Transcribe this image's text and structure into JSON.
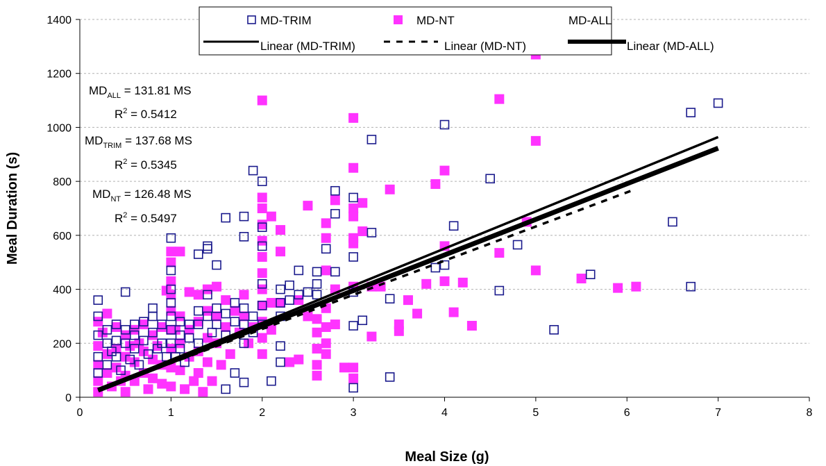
{
  "chart_data": {
    "type": "scatter",
    "title": "",
    "xlabel": "Meal Size (g)",
    "ylabel": "Meal Duration (s)",
    "xlim": [
      0,
      8
    ],
    "ylim": [
      0,
      1400
    ],
    "x_ticks": [
      0,
      1,
      2,
      3,
      4,
      5,
      6,
      7,
      8
    ],
    "y_ticks": [
      0,
      200,
      400,
      600,
      800,
      1000,
      1200,
      1400
    ],
    "grid": "horizontal dashed",
    "legend_placement": "top",
    "legend": {
      "md_trim": "MD-TRIM",
      "md_nt": "MD-NT",
      "md_all": "MD-ALL",
      "lin_trim": "Linear (MD-TRIM)",
      "lin_nt": "Linear (MD-NT)",
      "lin_all": "Linear (MD-ALL)"
    },
    "annotations": {
      "all_eq_pre": "MD",
      "all_eq_sub": "ALL",
      "all_eq_post": " = 131.81 MS",
      "all_r2_pre": "R",
      "all_r2_sup": "2",
      "all_r2_post": " = 0.5412",
      "trim_eq_pre": "MD",
      "trim_eq_sub": "TRIM",
      "trim_eq_post": " = 137.68 MS",
      "trim_r2_pre": "R",
      "trim_r2_sup": "2",
      "trim_r2_post": " = 0.5345",
      "nt_eq_pre": "MD",
      "nt_eq_sub": "NT",
      "nt_eq_post": " = 126.48 MS",
      "nt_r2_pre": "R",
      "nt_r2_sup": "2",
      "nt_r2_post": " = 0.5497"
    },
    "colors": {
      "trim": "#1a1a8c",
      "nt": "#ff33ff",
      "line": "#000000",
      "grid": "#b0b0b0"
    },
    "series": [
      {
        "name": "MD-TRIM",
        "marker": "open-square",
        "points": [
          [
            0.2,
            360
          ],
          [
            0.2,
            300
          ],
          [
            0.2,
            230
          ],
          [
            0.2,
            150
          ],
          [
            0.2,
            90
          ],
          [
            0.3,
            250
          ],
          [
            0.3,
            200
          ],
          [
            0.3,
            120
          ],
          [
            0.35,
            170
          ],
          [
            0.4,
            270
          ],
          [
            0.4,
            210
          ],
          [
            0.4,
            150
          ],
          [
            0.45,
            100
          ],
          [
            0.5,
            390
          ],
          [
            0.5,
            250
          ],
          [
            0.5,
            200
          ],
          [
            0.55,
            140
          ],
          [
            0.6,
            270
          ],
          [
            0.6,
            230
          ],
          [
            0.6,
            180
          ],
          [
            0.65,
            120
          ],
          [
            0.7,
            280
          ],
          [
            0.7,
            210
          ],
          [
            0.75,
            160
          ],
          [
            0.8,
            330
          ],
          [
            0.8,
            300
          ],
          [
            0.8,
            240
          ],
          [
            0.85,
            180
          ],
          [
            0.9,
            270
          ],
          [
            0.9,
            200
          ],
          [
            0.95,
            150
          ],
          [
            1.0,
            590
          ],
          [
            1.0,
            470
          ],
          [
            1.0,
            400
          ],
          [
            1.0,
            350
          ],
          [
            1.0,
            300
          ],
          [
            1.0,
            250
          ],
          [
            1.0,
            200
          ],
          [
            1.05,
            150
          ],
          [
            1.1,
            280
          ],
          [
            1.1,
            230
          ],
          [
            1.1,
            180
          ],
          [
            1.15,
            130
          ],
          [
            1.2,
            270
          ],
          [
            1.2,
            220
          ],
          [
            1.3,
            530
          ],
          [
            1.3,
            320
          ],
          [
            1.3,
            270
          ],
          [
            1.3,
            200
          ],
          [
            1.4,
            560
          ],
          [
            1.4,
            550
          ],
          [
            1.4,
            380
          ],
          [
            1.4,
            300
          ],
          [
            1.45,
            240
          ],
          [
            1.5,
            490
          ],
          [
            1.5,
            330
          ],
          [
            1.5,
            270
          ],
          [
            1.6,
            665
          ],
          [
            1.6,
            310
          ],
          [
            1.6,
            230
          ],
          [
            1.6,
            30
          ],
          [
            1.7,
            350
          ],
          [
            1.7,
            280
          ],
          [
            1.7,
            90
          ],
          [
            1.8,
            670
          ],
          [
            1.8,
            595
          ],
          [
            1.8,
            330
          ],
          [
            1.8,
            270
          ],
          [
            1.8,
            200
          ],
          [
            1.8,
            55
          ],
          [
            1.9,
            840
          ],
          [
            1.9,
            300
          ],
          [
            1.9,
            240
          ],
          [
            2.0,
            800
          ],
          [
            2.0,
            630
          ],
          [
            2.0,
            560
          ],
          [
            2.0,
            420
          ],
          [
            2.0,
            340
          ],
          [
            2.0,
            270
          ],
          [
            2.1,
            60
          ],
          [
            2.2,
            400
          ],
          [
            2.2,
            350
          ],
          [
            2.2,
            300
          ],
          [
            2.2,
            190
          ],
          [
            2.2,
            130
          ],
          [
            2.3,
            415
          ],
          [
            2.3,
            360
          ],
          [
            2.4,
            470
          ],
          [
            2.4,
            380
          ],
          [
            2.5,
            390
          ],
          [
            2.6,
            465
          ],
          [
            2.6,
            420
          ],
          [
            2.6,
            380
          ],
          [
            2.7,
            550
          ],
          [
            2.8,
            765
          ],
          [
            2.8,
            680
          ],
          [
            2.8,
            465
          ],
          [
            3.0,
            740
          ],
          [
            3.0,
            520
          ],
          [
            3.0,
            390
          ],
          [
            3.0,
            265
          ],
          [
            3.0,
            35
          ],
          [
            3.1,
            285
          ],
          [
            3.2,
            955
          ],
          [
            3.2,
            610
          ],
          [
            3.4,
            365
          ],
          [
            3.4,
            75
          ],
          [
            3.9,
            480
          ],
          [
            4.0,
            1010
          ],
          [
            4.0,
            490
          ],
          [
            4.1,
            635
          ],
          [
            4.5,
            810
          ],
          [
            4.6,
            395
          ],
          [
            4.8,
            565
          ],
          [
            5.2,
            250
          ],
          [
            5.6,
            455
          ],
          [
            6.5,
            650
          ],
          [
            6.7,
            1055
          ],
          [
            6.7,
            410
          ],
          [
            7.0,
            1090
          ]
        ]
      },
      {
        "name": "MD-NT",
        "marker": "filled-square",
        "points": [
          [
            0.2,
            280
          ],
          [
            0.2,
            190
          ],
          [
            0.2,
            120
          ],
          [
            0.2,
            60
          ],
          [
            0.2,
            20
          ],
          [
            0.25,
            240
          ],
          [
            0.3,
            310
          ],
          [
            0.3,
            160
          ],
          [
            0.3,
            90
          ],
          [
            0.35,
            40
          ],
          [
            0.4,
            260
          ],
          [
            0.4,
            180
          ],
          [
            0.4,
            110
          ],
          [
            0.45,
            60
          ],
          [
            0.5,
            230
          ],
          [
            0.5,
            150
          ],
          [
            0.5,
            80
          ],
          [
            0.5,
            20
          ],
          [
            0.55,
            190
          ],
          [
            0.6,
            250
          ],
          [
            0.6,
            130
          ],
          [
            0.6,
            60
          ],
          [
            0.65,
            200
          ],
          [
            0.7,
            270
          ],
          [
            0.7,
            170
          ],
          [
            0.7,
            90
          ],
          [
            0.75,
            30
          ],
          [
            0.8,
            230
          ],
          [
            0.8,
            140
          ],
          [
            0.8,
            70
          ],
          [
            0.85,
            190
          ],
          [
            0.9,
            260
          ],
          [
            0.9,
            120
          ],
          [
            0.9,
            50
          ],
          [
            0.95,
            395
          ],
          [
            1.0,
            540
          ],
          [
            1.0,
            500
          ],
          [
            1.0,
            430
          ],
          [
            1.0,
            380
          ],
          [
            1.0,
            320
          ],
          [
            1.0,
            250
          ],
          [
            1.0,
            180
          ],
          [
            1.0,
            110
          ],
          [
            1.0,
            40
          ],
          [
            1.05,
            250
          ],
          [
            1.1,
            540
          ],
          [
            1.1,
            300
          ],
          [
            1.1,
            200
          ],
          [
            1.1,
            100
          ],
          [
            1.15,
            30
          ],
          [
            1.2,
            390
          ],
          [
            1.2,
            250
          ],
          [
            1.2,
            150
          ],
          [
            1.25,
            60
          ],
          [
            1.3,
            380
          ],
          [
            1.3,
            280
          ],
          [
            1.3,
            170
          ],
          [
            1.3,
            90
          ],
          [
            1.35,
            20
          ],
          [
            1.4,
            400
          ],
          [
            1.4,
            320
          ],
          [
            1.4,
            220
          ],
          [
            1.4,
            130
          ],
          [
            1.45,
            60
          ],
          [
            1.5,
            410
          ],
          [
            1.5,
            300
          ],
          [
            1.5,
            200
          ],
          [
            1.55,
            120
          ],
          [
            1.6,
            360
          ],
          [
            1.6,
            260
          ],
          [
            1.65,
            160
          ],
          [
            1.7,
            320
          ],
          [
            1.75,
            240
          ],
          [
            1.8,
            380
          ],
          [
            1.8,
            300
          ],
          [
            1.85,
            200
          ],
          [
            1.9,
            260
          ],
          [
            2.0,
            1100
          ],
          [
            2.0,
            740
          ],
          [
            2.0,
            700
          ],
          [
            2.0,
            640
          ],
          [
            2.0,
            580
          ],
          [
            2.0,
            520
          ],
          [
            2.0,
            460
          ],
          [
            2.0,
            400
          ],
          [
            2.0,
            340
          ],
          [
            2.0,
            280
          ],
          [
            2.0,
            220
          ],
          [
            2.0,
            160
          ],
          [
            2.1,
            670
          ],
          [
            2.1,
            350
          ],
          [
            2.1,
            250
          ],
          [
            2.2,
            620
          ],
          [
            2.2,
            540
          ],
          [
            2.2,
            350
          ],
          [
            2.3,
            130
          ],
          [
            2.4,
            360
          ],
          [
            2.4,
            140
          ],
          [
            2.5,
            710
          ],
          [
            2.5,
            300
          ],
          [
            2.6,
            290
          ],
          [
            2.6,
            240
          ],
          [
            2.6,
            180
          ],
          [
            2.6,
            120
          ],
          [
            2.6,
            80
          ],
          [
            2.7,
            645
          ],
          [
            2.7,
            590
          ],
          [
            2.7,
            470
          ],
          [
            2.7,
            330
          ],
          [
            2.7,
            260
          ],
          [
            2.7,
            200
          ],
          [
            2.7,
            160
          ],
          [
            2.8,
            730
          ],
          [
            2.8,
            400
          ],
          [
            2.8,
            270
          ],
          [
            2.9,
            110
          ],
          [
            3.0,
            1035
          ],
          [
            3.0,
            850
          ],
          [
            3.0,
            700
          ],
          [
            3.0,
            670
          ],
          [
            3.0,
            590
          ],
          [
            3.0,
            570
          ],
          [
            3.0,
            410
          ],
          [
            3.0,
            110
          ],
          [
            3.0,
            70
          ],
          [
            3.1,
            720
          ],
          [
            3.1,
            615
          ],
          [
            3.2,
            410
          ],
          [
            3.2,
            225
          ],
          [
            3.3,
            410
          ],
          [
            3.4,
            770
          ],
          [
            3.5,
            270
          ],
          [
            3.5,
            245
          ],
          [
            3.6,
            360
          ],
          [
            3.7,
            310
          ],
          [
            3.8,
            420
          ],
          [
            3.9,
            790
          ],
          [
            4.0,
            840
          ],
          [
            4.0,
            560
          ],
          [
            4.0,
            430
          ],
          [
            4.1,
            315
          ],
          [
            4.2,
            425
          ],
          [
            4.3,
            265
          ],
          [
            4.6,
            1105
          ],
          [
            4.6,
            535
          ],
          [
            4.9,
            650
          ],
          [
            5.0,
            1270
          ],
          [
            5.0,
            950
          ],
          [
            5.0,
            470
          ],
          [
            5.5,
            440
          ],
          [
            5.9,
            405
          ],
          [
            6.1,
            410
          ]
        ]
      }
    ],
    "trendlines": [
      {
        "name": "Linear (MD-ALL)",
        "x": [
          0.2,
          7.0
        ],
        "y": [
          26,
          923
        ]
      },
      {
        "name": "Linear (MD-TRIM)",
        "x": [
          0.2,
          7.0
        ],
        "y": [
          28,
          964
        ]
      },
      {
        "name": "Linear (MD-NT)",
        "x": [
          0.2,
          6.1
        ],
        "y": [
          25,
          772
        ]
      }
    ]
  }
}
